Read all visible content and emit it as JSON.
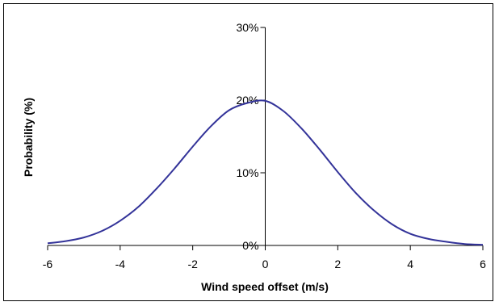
{
  "chart_data": {
    "type": "line",
    "title": "",
    "xlabel": "Wind speed offset (m/s)",
    "ylabel": "Probability (%)",
    "xlim": [
      -6,
      6
    ],
    "ylim": [
      0,
      30
    ],
    "x_ticks": [
      -6,
      -4,
      -2,
      0,
      2,
      4,
      6
    ],
    "x_tick_labels": [
      "-6",
      "-4",
      "-2",
      "0",
      "2",
      "4",
      "6"
    ],
    "y_ticks": [
      0,
      10,
      20,
      30
    ],
    "y_tick_labels": [
      "0%",
      "10%",
      "20%",
      "30%"
    ],
    "grid": false,
    "legend": "none",
    "series": [
      {
        "color": "#333399",
        "x": [
          -6,
          -5.5,
          -5,
          -4.5,
          -4,
          -3.5,
          -3,
          -2.5,
          -2,
          -1.5,
          -1,
          -0.5,
          0,
          0.5,
          1,
          1.5,
          2,
          2.5,
          3,
          3.5,
          4,
          4.5,
          5,
          5.5,
          6
        ],
        "y": [
          0.3,
          0.6,
          1.1,
          2.0,
          3.4,
          5.3,
          7.8,
          10.6,
          13.6,
          16.4,
          18.6,
          19.6,
          19.9,
          18.5,
          16.1,
          13.2,
          10.1,
          7.2,
          4.8,
          2.9,
          1.6,
          0.9,
          0.5,
          0.2,
          0.1
        ]
      }
    ]
  }
}
